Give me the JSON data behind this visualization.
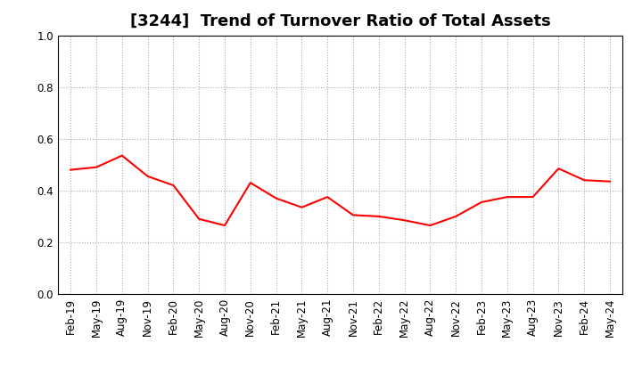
{
  "title": "[3244]  Trend of Turnover Ratio of Total Assets",
  "x_labels": [
    "Feb-19",
    "May-19",
    "Aug-19",
    "Nov-19",
    "Feb-20",
    "May-20",
    "Aug-20",
    "Nov-20",
    "Feb-21",
    "May-21",
    "Aug-21",
    "Nov-21",
    "Feb-22",
    "May-22",
    "Aug-22",
    "Nov-22",
    "Feb-23",
    "May-23",
    "Aug-23",
    "Nov-23",
    "Feb-24",
    "May-24"
  ],
  "y_values": [
    0.48,
    0.49,
    0.535,
    0.455,
    0.42,
    0.29,
    0.265,
    0.43,
    0.37,
    0.335,
    0.375,
    0.305,
    0.3,
    0.285,
    0.265,
    0.3,
    0.355,
    0.375,
    0.375,
    0.485,
    0.44,
    0.435
  ],
  "line_color": "#FF0000",
  "line_width": 1.5,
  "ylim": [
    0.0,
    1.0
  ],
  "yticks": [
    0.0,
    0.2,
    0.4,
    0.6,
    0.8,
    1.0
  ],
  "background_color": "#ffffff",
  "grid_color": "#aaaaaa",
  "title_fontsize": 13,
  "tick_fontsize": 8.5
}
